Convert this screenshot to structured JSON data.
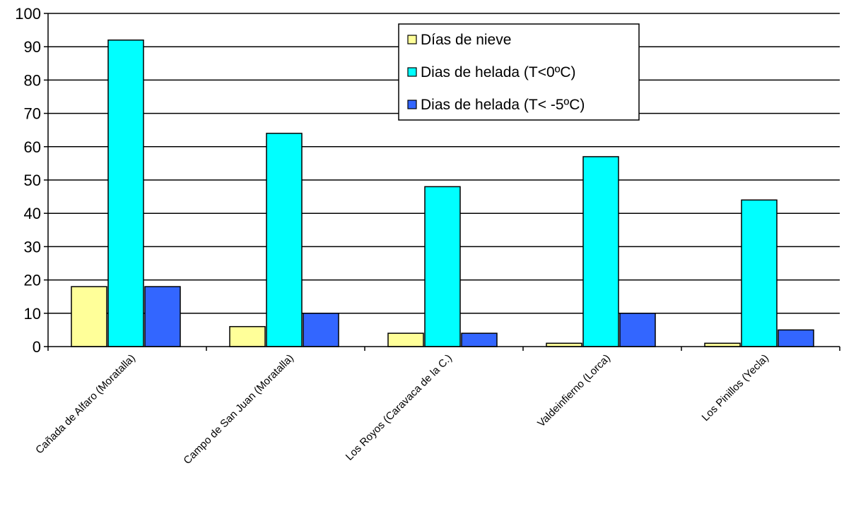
{
  "chart_data": {
    "type": "bar",
    "categories": [
      "Cañada de Alfaro (Moratalla)",
      "Campo de San Juan (Moratalla)",
      "Los Royos (Caravaca de la C.)",
      "Valdeinfierno (Lorca)",
      "Los Pinillos (Yecla)"
    ],
    "series": [
      {
        "name": "Días de nieve",
        "values": [
          18,
          6,
          4,
          1,
          1
        ],
        "color": "#ffff99"
      },
      {
        "name": "Dias de helada (T<0ºC)",
        "values": [
          92,
          64,
          48,
          57,
          44
        ],
        "color": "#00ffff"
      },
      {
        "name": "Dias de helada (T< -5ºC)",
        "values": [
          18,
          10,
          4,
          10,
          5
        ],
        "color": "#3366ff"
      }
    ],
    "ylim": [
      0,
      100
    ],
    "yticks": [
      0,
      10,
      20,
      30,
      40,
      50,
      60,
      70,
      80,
      90,
      100
    ],
    "title": "",
    "xlabel": "",
    "ylabel": "",
    "grid": true,
    "legend_position": "top-center"
  }
}
